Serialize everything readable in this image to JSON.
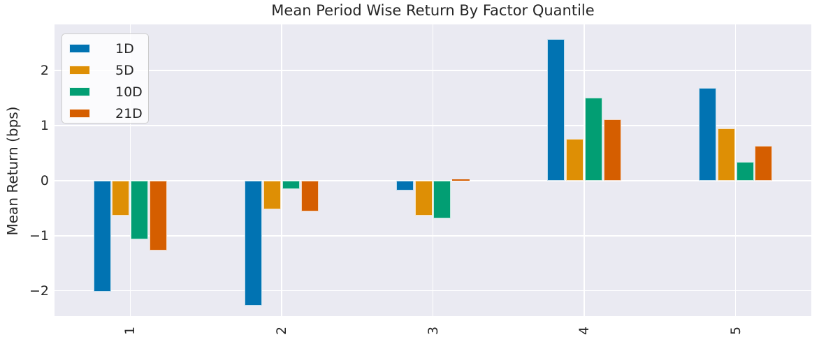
{
  "figure": {
    "title": "Mean Period Wise Return By Factor Quantile",
    "ylabel": "Mean Return (bps)"
  },
  "chart_data": {
    "type": "bar",
    "title": "Mean Period Wise Return By Factor Quantile",
    "xlabel": "",
    "ylabel": "Mean Return (bps)",
    "categories": [
      "1",
      "2",
      "3",
      "4",
      "5"
    ],
    "series": [
      {
        "name": "1D",
        "color": "#0173b2",
        "values": [
          -2.01,
          -2.27,
          -0.18,
          2.57,
          1.68
        ]
      },
      {
        "name": "5D",
        "color": "#de8f05",
        "values": [
          -0.63,
          -0.52,
          -0.63,
          0.76,
          0.95
        ]
      },
      {
        "name": "10D",
        "color": "#029e73",
        "values": [
          -1.07,
          -0.15,
          -0.68,
          1.51,
          0.34
        ]
      },
      {
        "name": "21D",
        "color": "#d55e00",
        "values": [
          -1.27,
          -0.56,
          0.03,
          1.11,
          0.64
        ]
      }
    ],
    "ylim": [
      -2.46,
      2.84
    ],
    "yticks": [
      -2,
      -1,
      0,
      1,
      2
    ],
    "grid": true,
    "legend_position": "upper-left",
    "x_tick_rotation": 90
  },
  "style": {
    "figure_background": "#ffffff",
    "plot_background": "#eaeaf2",
    "grid_color": "#ffffff",
    "text_color": "#262626",
    "bar_edge_color": "#ffffff",
    "legend_border": "#cccccc",
    "legend_background": "#f9f9fb"
  }
}
